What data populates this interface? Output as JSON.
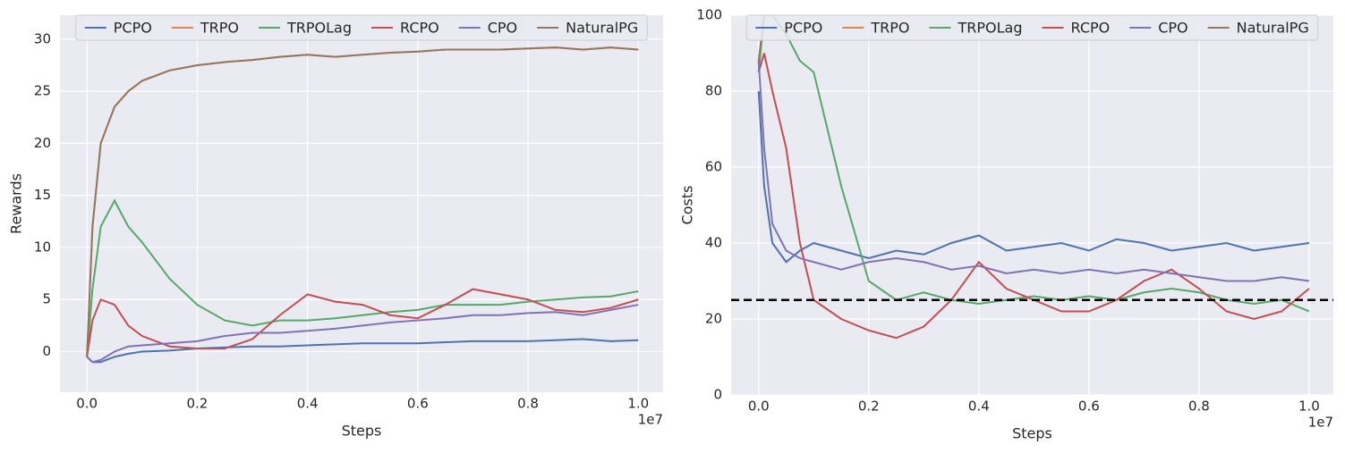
{
  "chart_data": [
    {
      "type": "line",
      "xlabel": "Steps",
      "ylabel": "Rewards",
      "x_offset_label": "1e7",
      "grid": true,
      "legend_loc": "upper center",
      "x": [
        0,
        100000,
        250000,
        500000,
        750000,
        1000000,
        1500000,
        2000000,
        2500000,
        3000000,
        3500000,
        4000000,
        4500000,
        5000000,
        5500000,
        6000000,
        6500000,
        7000000,
        7500000,
        8000000,
        8500000,
        9000000,
        9500000,
        10000000
      ],
      "xlim": [
        -490000,
        10450000
      ],
      "xticks": [
        {
          "value": 0,
          "label": "0.0"
        },
        {
          "value": 2000000,
          "label": "0.2"
        },
        {
          "value": 4000000,
          "label": "0.4"
        },
        {
          "value": 6000000,
          "label": "0.6"
        },
        {
          "value": 8000000,
          "label": "0.8"
        },
        {
          "value": 10000000,
          "label": "1.0"
        }
      ],
      "ylim": [
        -3.9,
        32.3
      ],
      "yticks": [
        0,
        5,
        10,
        15,
        20,
        25,
        30
      ],
      "series": [
        {
          "name": "PCPO",
          "color": "#4c72b0",
          "values": [
            -0.5,
            -1,
            -1,
            -0.5,
            -0.2,
            0,
            0.1,
            0.3,
            0.4,
            0.5,
            0.5,
            0.6,
            0.7,
            0.8,
            0.8,
            0.8,
            0.9,
            1,
            1,
            1,
            1.1,
            1.2,
            1,
            1.1
          ]
        },
        {
          "name": "TRPO",
          "color": "#dd8452",
          "values": [
            -0.5,
            12,
            20,
            23.5,
            25,
            26,
            27,
            27.5,
            27.8,
            28,
            28.3,
            28.5,
            28.3,
            28.5,
            28.7,
            28.8,
            29,
            29,
            29,
            29.1,
            29.2,
            29,
            29.2,
            29
          ]
        },
        {
          "name": "TRPOLag",
          "color": "#55a868",
          "values": [
            -0.5,
            6,
            12,
            14.5,
            12,
            10.5,
            7,
            4.5,
            3,
            2.5,
            3,
            3,
            3.2,
            3.5,
            3.8,
            4,
            4.5,
            4.5,
            4.5,
            4.8,
            5,
            5.2,
            5.3,
            5.8
          ]
        },
        {
          "name": "RCPO",
          "color": "#c44e52",
          "values": [
            -0.5,
            3,
            5,
            4.5,
            2.5,
            1.5,
            0.5,
            0.3,
            0.3,
            1.2,
            3.5,
            5.5,
            4.8,
            4.5,
            3.5,
            3.2,
            4.5,
            6,
            5.5,
            5,
            4,
            3.8,
            4.2,
            5
          ]
        },
        {
          "name": "CPO",
          "color": "#8172b3",
          "values": [
            -0.5,
            -1,
            -0.8,
            0,
            0.5,
            0.6,
            0.8,
            1,
            1.5,
            1.8,
            1.8,
            2,
            2.2,
            2.5,
            2.8,
            3,
            3.2,
            3.5,
            3.5,
            3.7,
            3.8,
            3.5,
            4,
            4.5
          ]
        },
        {
          "name": "NaturalPG",
          "color": "#937860",
          "values": [
            -0.5,
            12,
            20,
            23.5,
            25,
            26,
            27,
            27.5,
            27.8,
            28,
            28.3,
            28.5,
            28.3,
            28.5,
            28.7,
            28.8,
            29,
            29,
            29,
            29.1,
            29.2,
            29,
            29.2,
            29
          ]
        }
      ]
    },
    {
      "type": "line",
      "xlabel": "Steps",
      "ylabel": "Costs",
      "x_offset_label": "1e7",
      "grid": true,
      "legend_loc": "upper center",
      "hline": 25,
      "x": [
        0,
        100000,
        250000,
        500000,
        750000,
        1000000,
        1500000,
        2000000,
        2500000,
        3000000,
        3500000,
        4000000,
        4500000,
        5000000,
        5500000,
        6000000,
        6500000,
        7000000,
        7500000,
        8000000,
        8500000,
        9000000,
        9500000,
        10000000
      ],
      "xlim": [
        -500000,
        10440000
      ],
      "xticks": [
        {
          "value": 0,
          "label": "0.0"
        },
        {
          "value": 2000000,
          "label": "0.2"
        },
        {
          "value": 4000000,
          "label": "0.4"
        },
        {
          "value": 6000000,
          "label": "0.6"
        },
        {
          "value": 8000000,
          "label": "0.8"
        },
        {
          "value": 10000000,
          "label": "1.0"
        }
      ],
      "ylim": [
        0,
        100
      ],
      "yticks": [
        0,
        20,
        40,
        60,
        80,
        100
      ],
      "series": [
        {
          "name": "PCPO",
          "color": "#4c72b0",
          "values": [
            80,
            55,
            40,
            35,
            38,
            40,
            38,
            36,
            38,
            37,
            40,
            42,
            38,
            39,
            40,
            38,
            41,
            40,
            38,
            39,
            40,
            38,
            39,
            40
          ]
        },
        {
          "name": "TRPO",
          "color": "#dd8452",
          "values": [
            null,
            null,
            null,
            null,
            null,
            null,
            null,
            null,
            null,
            null,
            null,
            null,
            null,
            null,
            null,
            null,
            null,
            null,
            null,
            null,
            null,
            null,
            null,
            null
          ]
        },
        {
          "name": "TRPOLag",
          "color": "#55a868",
          "values": [
            85,
            100,
            100,
            95,
            88,
            85,
            55,
            30,
            25,
            27,
            25,
            24,
            25,
            26,
            25,
            26,
            25,
            27,
            28,
            27,
            25,
            24,
            25,
            22
          ]
        },
        {
          "name": "RCPO",
          "color": "#c44e52",
          "values": [
            85,
            90,
            80,
            65,
            40,
            25,
            20,
            17,
            15,
            18,
            25,
            35,
            28,
            25,
            22,
            22,
            25,
            30,
            33,
            28,
            22,
            20,
            22,
            28
          ]
        },
        {
          "name": "CPO",
          "color": "#8172b3",
          "values": [
            88,
            65,
            45,
            38,
            36,
            35,
            33,
            35,
            36,
            35,
            33,
            34,
            32,
            33,
            32,
            33,
            32,
            33,
            32,
            31,
            30,
            30,
            31,
            30
          ]
        },
        {
          "name": "NaturalPG",
          "color": "#937860",
          "values": [
            88,
            100,
            null,
            null,
            null,
            null,
            null,
            null,
            null,
            null,
            null,
            null,
            null,
            null,
            null,
            null,
            null,
            null,
            null,
            null,
            null,
            null,
            null,
            null
          ]
        }
      ]
    }
  ]
}
